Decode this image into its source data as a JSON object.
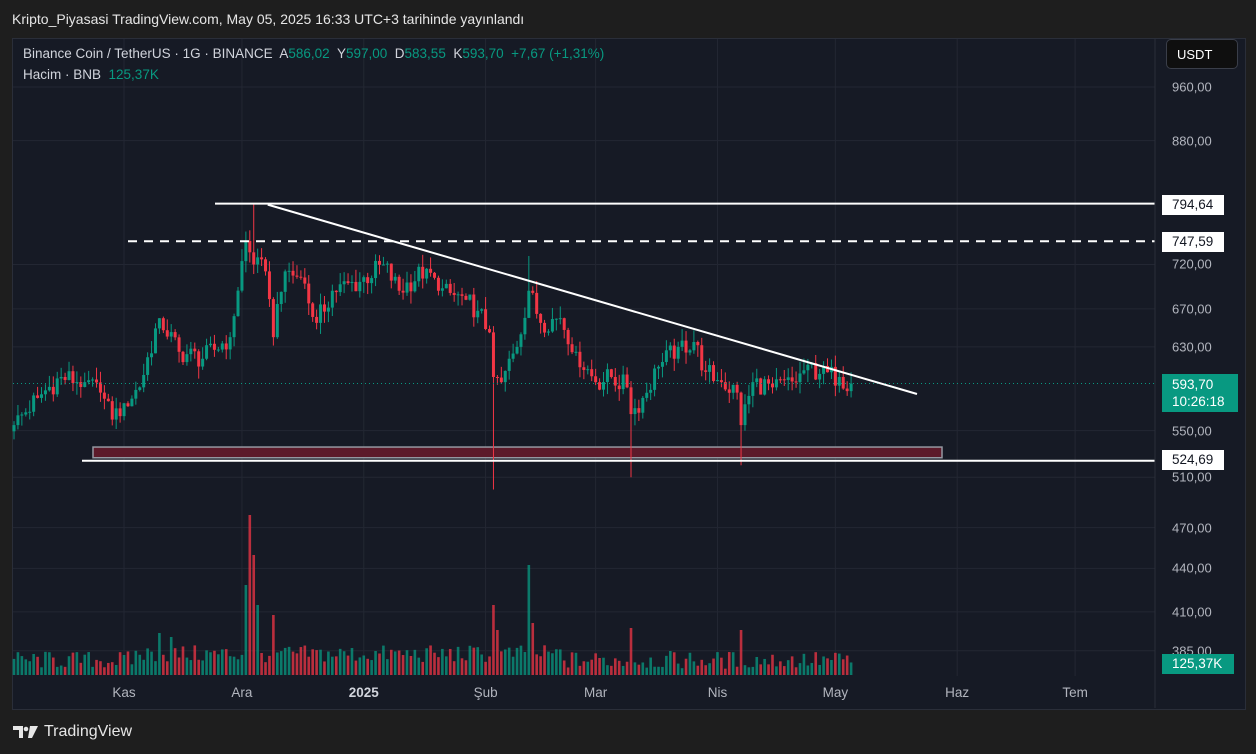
{
  "published": "Kripto_Piyasasi TradingView.com, May 05, 2025 16:33 UTC+3 tarihinde yayınlandı",
  "legend": {
    "symbol": "Binance Coin / TetherUS · 1G · BINANCE",
    "open_label": "A",
    "open": "586,02",
    "high_label": "Y",
    "high": "597,00",
    "low_label": "D",
    "low": "583,55",
    "close_label": "K",
    "close": "593,70",
    "change": "+7,67 (+1,31%)",
    "volume_label": "Hacim · BNB",
    "volume": "125,37K"
  },
  "currency_button": "USDT",
  "price_tag": {
    "price": "593,70",
    "countdown": "10:26:18"
  },
  "volume_tag": "125,37K",
  "level_tags": [
    "794,64",
    "747,59",
    "524,69"
  ],
  "brand": "TradingView",
  "colors": {
    "up": "#089981",
    "down": "#f23645",
    "bg": "#161a25",
    "grid": "#232733",
    "zone": "#5c1a2a"
  },
  "chart_data": {
    "type": "candlestick",
    "scale": "log",
    "price_ticks": [
      960,
      880,
      720,
      670,
      630,
      550,
      510,
      470,
      440,
      410,
      385
    ],
    "price_tick_labels": [
      "960,00",
      "880,00",
      "720,00",
      "670,00",
      "630,00",
      "550,00",
      "510,00",
      "470,00",
      "440,00",
      "410,00",
      "385,00"
    ],
    "months": [
      {
        "label": "Kas",
        "day": 28
      },
      {
        "label": "Ara",
        "day": 58
      },
      {
        "label": "2025",
        "day": 89,
        "bold": true
      },
      {
        "label": "Şub",
        "day": 120
      },
      {
        "label": "Mar",
        "day": 148
      },
      {
        "label": "Nis",
        "day": 179
      },
      {
        "label": "May",
        "day": 209
      },
      {
        "label": "Haz",
        "day": 240
      },
      {
        "label": "Tem",
        "day": 270
      }
    ],
    "start_date": "2024-10-04",
    "last_day": 213,
    "close_anchors": [
      [
        0,
        555
      ],
      [
        6,
        580
      ],
      [
        12,
        600
      ],
      [
        18,
        595
      ],
      [
        22,
        585
      ],
      [
        25,
        560
      ],
      [
        28,
        575
      ],
      [
        32,
        590
      ],
      [
        37,
        660
      ],
      [
        42,
        625
      ],
      [
        48,
        618
      ],
      [
        55,
        640
      ],
      [
        59,
        748
      ],
      [
        61,
        720
      ],
      [
        64,
        712
      ],
      [
        66,
        640
      ],
      [
        69,
        712
      ],
      [
        73,
        705
      ],
      [
        77,
        655
      ],
      [
        81,
        690
      ],
      [
        88,
        700
      ],
      [
        94,
        720
      ],
      [
        98,
        690
      ],
      [
        105,
        715
      ],
      [
        108,
        690
      ],
      [
        115,
        680
      ],
      [
        118,
        668
      ],
      [
        121,
        645
      ],
      [
        122,
        600
      ],
      [
        124,
        595
      ],
      [
        128,
        630
      ],
      [
        131,
        690
      ],
      [
        134,
        655
      ],
      [
        139,
        660
      ],
      [
        143,
        625
      ],
      [
        148,
        595
      ],
      [
        152,
        600
      ],
      [
        156,
        590
      ],
      [
        157,
        565
      ],
      [
        160,
        580
      ],
      [
        164,
        610
      ],
      [
        169,
        630
      ],
      [
        173,
        635
      ],
      [
        176,
        605
      ],
      [
        180,
        595
      ],
      [
        184,
        585
      ],
      [
        185,
        555
      ],
      [
        188,
        595
      ],
      [
        193,
        590
      ],
      [
        199,
        595
      ],
      [
        202,
        612
      ],
      [
        205,
        603
      ],
      [
        210,
        600
      ],
      [
        213,
        593.7
      ]
    ],
    "special_wicks": [
      {
        "day": 61,
        "high": 794.64
      },
      {
        "day": 122,
        "low": 500
      },
      {
        "day": 131,
        "high": 730
      },
      {
        "day": 157,
        "low": 510
      },
      {
        "day": 185,
        "low": 520
      }
    ],
    "volume_spikes": [
      [
        37,
        420
      ],
      [
        40,
        380
      ],
      [
        59,
        900
      ],
      [
        60,
        1600
      ],
      [
        61,
        1200
      ],
      [
        62,
        700
      ],
      [
        66,
        600
      ],
      [
        122,
        700
      ],
      [
        123,
        450
      ],
      [
        131,
        1100
      ],
      [
        132,
        520
      ],
      [
        157,
        470
      ],
      [
        185,
        450
      ]
    ],
    "volume_last_k": 125.37,
    "drawings": {
      "resistance": 794.64,
      "dashed_level": 747.59,
      "support": 524.69,
      "support_zone": [
        524.69,
        533
      ],
      "trendline": [
        {
          "day": 61,
          "price": 794.64
        },
        {
          "day": 230,
          "price": 590
        }
      ]
    }
  }
}
